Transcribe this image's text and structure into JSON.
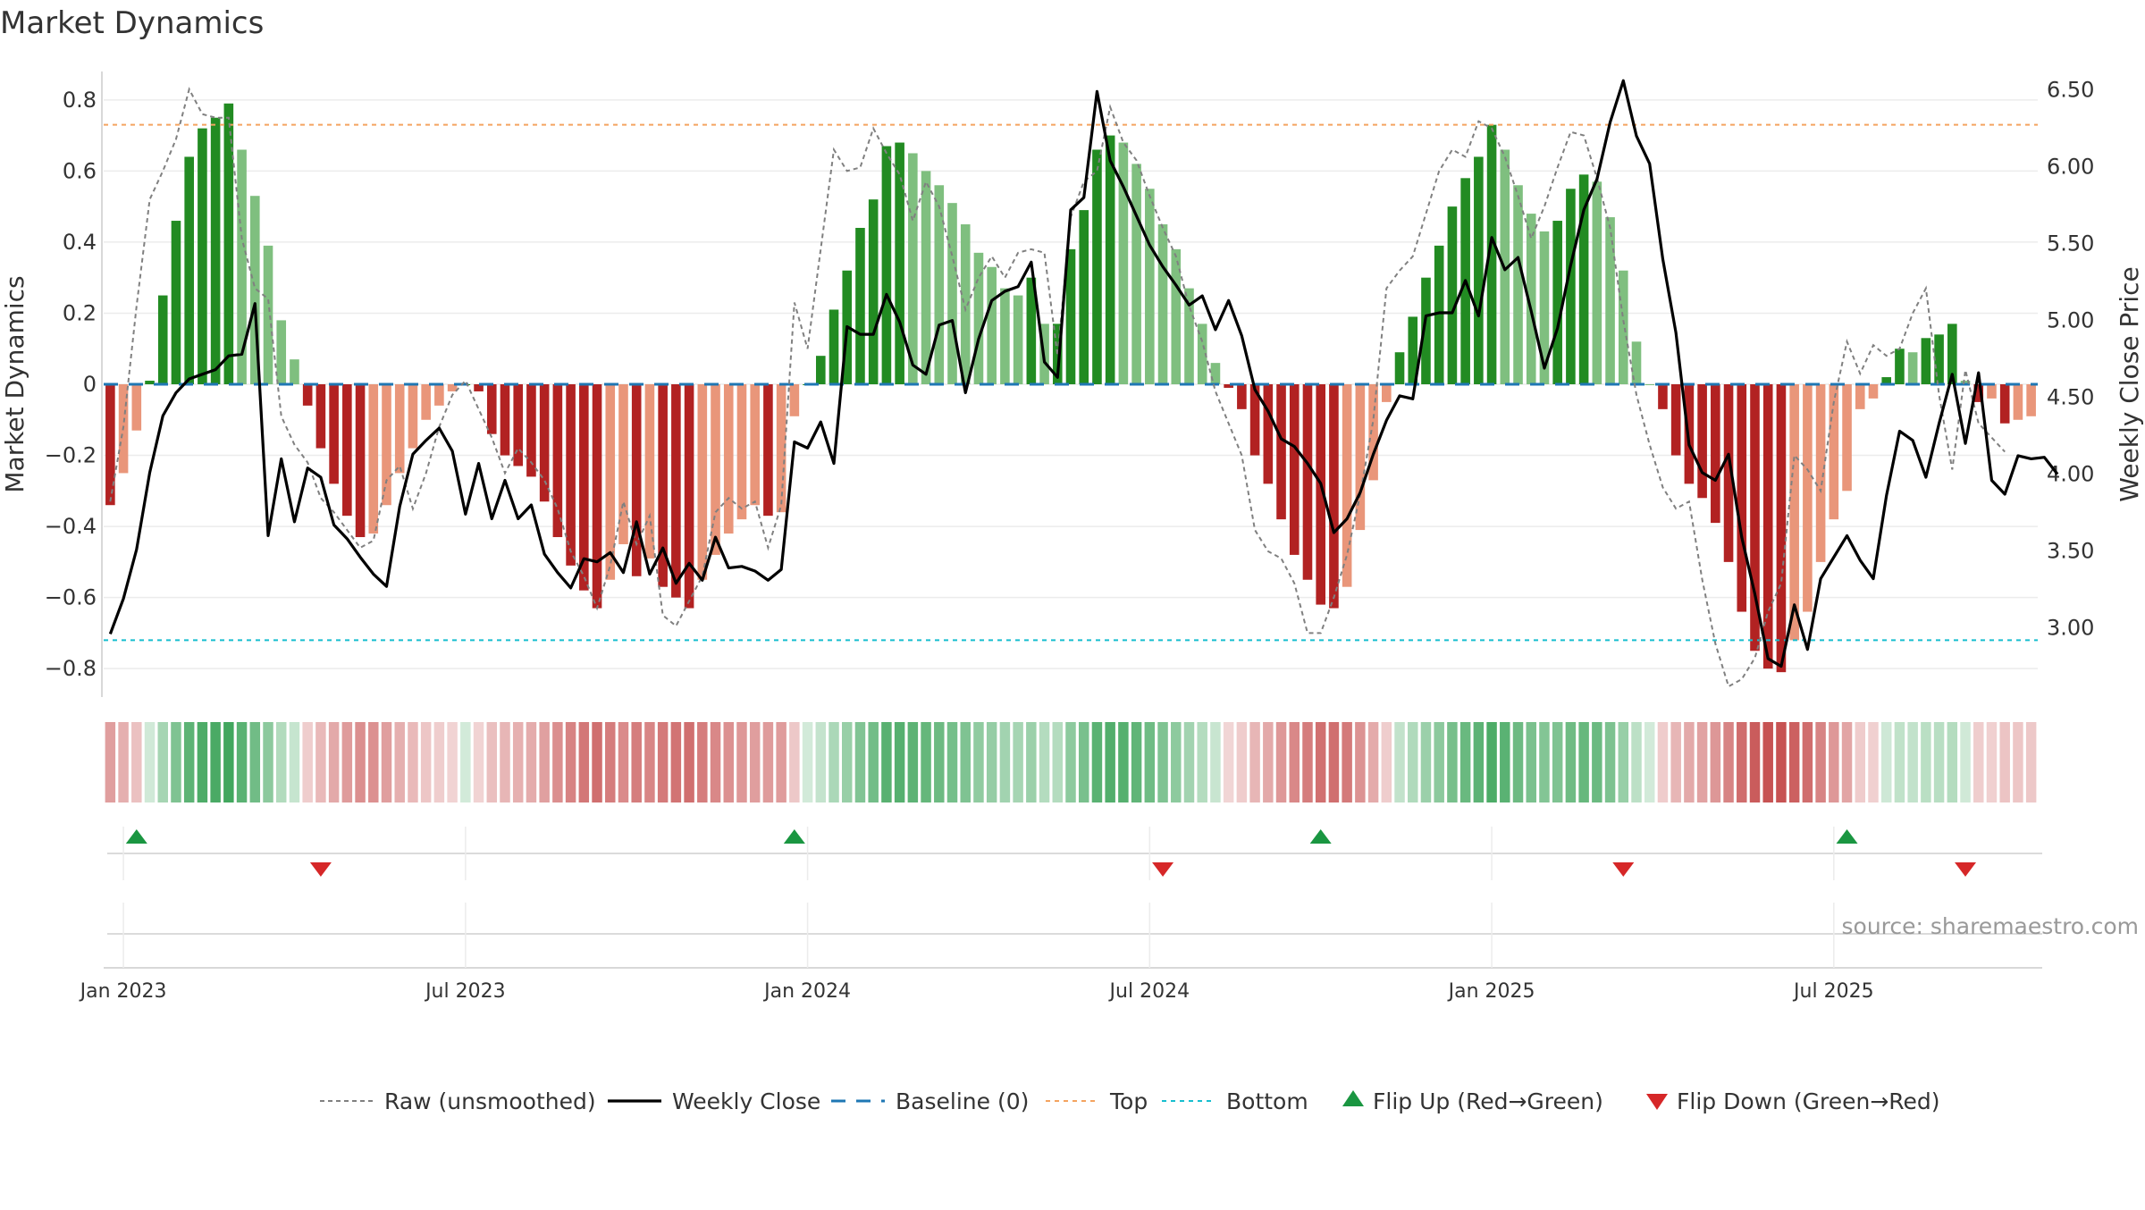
{
  "chart_data": {
    "type": "bar",
    "title": "Market Dynamics",
    "source": "source: sharemaestro.com",
    "y_left": {
      "label": "Market Dynamics",
      "ylim": [
        -0.88,
        0.88
      ],
      "ticks": [
        0.8,
        0.6,
        0.4,
        0.2,
        0,
        -0.2,
        -0.4,
        -0.6,
        -0.8
      ],
      "tick_labels": [
        "0.8",
        "0.6",
        "0.4",
        "0.2",
        "0",
        "−0.2",
        "−0.4",
        "−0.6",
        "−0.8"
      ]
    },
    "y_right": {
      "label": "Weekly Close Price",
      "ylim": [
        2.55,
        6.62
      ],
      "ticks": [
        6.5,
        6.0,
        5.5,
        5.0,
        4.5,
        4.0,
        3.5,
        3.0
      ],
      "tick_labels": [
        "6.50",
        "6.00",
        "5.50",
        "5.00",
        "4.50",
        "4.00",
        "3.50",
        "3.00"
      ]
    },
    "x_axis": {
      "start": "2022-12-26",
      "weeks": 147,
      "ticks": [
        {
          "label": "Jan 2023",
          "week": 1
        },
        {
          "label": "Jul 2023",
          "week": 27
        },
        {
          "label": "Jan 2024",
          "week": 53
        },
        {
          "label": "Jul 2024",
          "week": 79
        },
        {
          "label": "Jan 2025",
          "week": 105
        },
        {
          "label": "Jul 2025",
          "week": 131
        }
      ]
    },
    "reference_lines": {
      "baseline": 0,
      "top": 0.73,
      "bottom": -0.72
    },
    "colors": {
      "strong_up": "#228b22",
      "weak_up": "#7fbf7f",
      "strong_down": "#b22222",
      "weak_down": "#e9967a",
      "raw": "#808080",
      "close": "#000000",
      "baseline": "#1f77b4",
      "top": "#f4a460",
      "bottom": "#17becf",
      "flip_up": "#1a9641",
      "flip_down": "#d62728"
    },
    "series": [
      {
        "name": "Market Dynamics",
        "kind": "bars",
        "values": [
          -0.34,
          -0.25,
          -0.13,
          0.01,
          0.25,
          0.46,
          0.64,
          0.72,
          0.75,
          0.79,
          0.66,
          0.53,
          0.39,
          0.18,
          0.07,
          -0.06,
          -0.18,
          -0.28,
          -0.37,
          -0.43,
          -0.42,
          -0.34,
          -0.25,
          -0.18,
          -0.1,
          -0.06,
          -0.02,
          0.0,
          -0.02,
          -0.14,
          -0.2,
          -0.23,
          -0.26,
          -0.33,
          -0.43,
          -0.51,
          -0.58,
          -0.63,
          -0.55,
          -0.45,
          -0.54,
          -0.49,
          -0.57,
          -0.6,
          -0.63,
          -0.55,
          -0.48,
          -0.42,
          -0.38,
          -0.34,
          -0.37,
          -0.36,
          -0.09,
          0.0,
          0.08,
          0.21,
          0.32,
          0.44,
          0.52,
          0.67,
          0.68,
          0.65,
          0.6,
          0.56,
          0.51,
          0.45,
          0.37,
          0.33,
          0.27,
          0.25,
          0.3,
          0.17,
          0.17,
          0.38,
          0.49,
          0.66,
          0.7,
          0.68,
          0.62,
          0.55,
          0.45,
          0.38,
          0.27,
          0.17,
          0.06,
          -0.01,
          -0.07,
          -0.2,
          -0.28,
          -0.38,
          -0.48,
          -0.55,
          -0.62,
          -0.63,
          -0.57,
          -0.41,
          -0.27,
          -0.05,
          0.09,
          0.19,
          0.3,
          0.39,
          0.5,
          0.58,
          0.64,
          0.73,
          0.66,
          0.56,
          0.48,
          0.43,
          0.46,
          0.55,
          0.59,
          0.57,
          0.47,
          0.32,
          0.12,
          0.0,
          -0.07,
          -0.2,
          -0.28,
          -0.32,
          -0.39,
          -0.5,
          -0.64,
          -0.75,
          -0.8,
          -0.81,
          -0.72,
          -0.64,
          -0.5,
          -0.38,
          -0.3,
          -0.07,
          -0.04,
          0.02,
          0.1,
          0.09,
          0.13,
          0.14,
          0.17,
          0.01,
          -0.05,
          -0.04,
          -0.11,
          -0.1,
          -0.09
        ]
      },
      {
        "name": "Raw (unsmoothed)",
        "kind": "line-dashed",
        "values": [
          -0.33,
          -0.12,
          0.22,
          0.52,
          0.6,
          0.69,
          0.83,
          0.76,
          0.75,
          0.75,
          0.41,
          0.27,
          0.24,
          -0.09,
          -0.17,
          -0.22,
          -0.32,
          -0.36,
          -0.41,
          -0.46,
          -0.44,
          -0.27,
          -0.23,
          -0.35,
          -0.25,
          -0.12,
          -0.03,
          0.01,
          -0.07,
          -0.15,
          -0.25,
          -0.18,
          -0.22,
          -0.27,
          -0.35,
          -0.47,
          -0.54,
          -0.63,
          -0.51,
          -0.33,
          -0.45,
          -0.37,
          -0.65,
          -0.68,
          -0.61,
          -0.54,
          -0.36,
          -0.32,
          -0.35,
          -0.33,
          -0.46,
          -0.34,
          0.23,
          0.1,
          0.38,
          0.66,
          0.6,
          0.61,
          0.72,
          0.65,
          0.59,
          0.46,
          0.57,
          0.5,
          0.36,
          0.21,
          0.3,
          0.36,
          0.3,
          0.37,
          0.38,
          0.37,
          0.08,
          0.47,
          0.57,
          0.6,
          0.78,
          0.68,
          0.63,
          0.53,
          0.44,
          0.36,
          0.22,
          0.12,
          -0.02,
          -0.11,
          -0.2,
          -0.41,
          -0.47,
          -0.49,
          -0.56,
          -0.7,
          -0.7,
          -0.6,
          -0.48,
          -0.31,
          -0.1,
          0.27,
          0.32,
          0.36,
          0.48,
          0.6,
          0.66,
          0.64,
          0.74,
          0.72,
          0.64,
          0.53,
          0.41,
          0.5,
          0.61,
          0.71,
          0.7,
          0.58,
          0.44,
          0.18,
          -0.03,
          -0.17,
          -0.29,
          -0.35,
          -0.33,
          -0.55,
          -0.73,
          -0.85,
          -0.83,
          -0.77,
          -0.64,
          -0.56,
          -0.2,
          -0.24,
          -0.3,
          -0.05,
          0.12,
          0.03,
          0.11,
          0.08,
          0.1,
          0.2,
          0.27,
          -0.03,
          -0.24,
          0.04,
          -0.11,
          -0.15,
          -0.19
        ]
      },
      {
        "name": "Weekly Close",
        "kind": "line",
        "axis": "right",
        "values": [
          2.96,
          3.19,
          3.51,
          4.01,
          4.38,
          4.53,
          4.62,
          4.65,
          4.68,
          4.77,
          4.78,
          5.11,
          3.6,
          4.1,
          3.69,
          4.04,
          3.98,
          3.67,
          3.58,
          3.46,
          3.35,
          3.27,
          3.79,
          4.13,
          4.22,
          4.3,
          4.15,
          3.74,
          4.07,
          3.71,
          3.96,
          3.71,
          3.8,
          3.48,
          3.36,
          3.26,
          3.45,
          3.43,
          3.49,
          3.36,
          3.69,
          3.35,
          3.52,
          3.29,
          3.42,
          3.31,
          3.59,
          3.39,
          3.4,
          3.37,
          3.31,
          3.38,
          4.21,
          4.17,
          4.34,
          4.07,
          4.96,
          4.91,
          4.91,
          5.17,
          4.99,
          4.71,
          4.65,
          4.97,
          5.0,
          4.53,
          4.88,
          5.13,
          5.19,
          5.22,
          5.38,
          4.73,
          4.63,
          5.72,
          5.8,
          6.49,
          6.04,
          5.87,
          5.68,
          5.49,
          5.35,
          5.23,
          5.1,
          5.16,
          4.94,
          5.13,
          4.9,
          4.55,
          4.41,
          4.23,
          4.18,
          4.07,
          3.94,
          3.62,
          3.71,
          3.88,
          4.13,
          4.35,
          4.51,
          4.49,
          5.03,
          5.05,
          5.05,
          5.26,
          5.03,
          5.54,
          5.33,
          5.41,
          5.06,
          4.69,
          4.95,
          5.36,
          5.72,
          5.92,
          6.29,
          6.56,
          6.2,
          6.02,
          5.4,
          4.92,
          4.19,
          4.01,
          3.96,
          4.13,
          3.59,
          3.22,
          2.8,
          2.75,
          3.15,
          2.86,
          3.32,
          3.46,
          3.6,
          3.44,
          3.32,
          3.86,
          4.28,
          4.22,
          3.98,
          4.33,
          4.65,
          4.2,
          4.66,
          3.96,
          3.87,
          4.12,
          4.1,
          4.11,
          4.0
        ]
      }
    ],
    "flips": [
      {
        "type": "up",
        "label": "Flip Up (Red→Green)",
        "weeks": [
          2,
          52,
          92,
          132
        ]
      },
      {
        "type": "down",
        "label": "Flip Down (Green→Red)",
        "weeks": [
          16,
          80,
          115,
          141
        ]
      }
    ],
    "legend": {
      "placement": "bottom-center",
      "items": [
        {
          "label": "Raw (unsmoothed)",
          "style": "dashed-gray"
        },
        {
          "label": "Weekly Close",
          "style": "solid-black"
        },
        {
          "label": "Baseline (0)",
          "style": "dashed-blue"
        },
        {
          "label": "Top",
          "style": "dashed-orange"
        },
        {
          "label": "Bottom",
          "style": "dashed-cyan"
        },
        {
          "label": "Flip Up (Red→Green)",
          "style": "triangle-up-green"
        },
        {
          "label": "Flip Down (Green→Red)",
          "style": "triangle-down-red"
        }
      ]
    },
    "grid": true
  }
}
